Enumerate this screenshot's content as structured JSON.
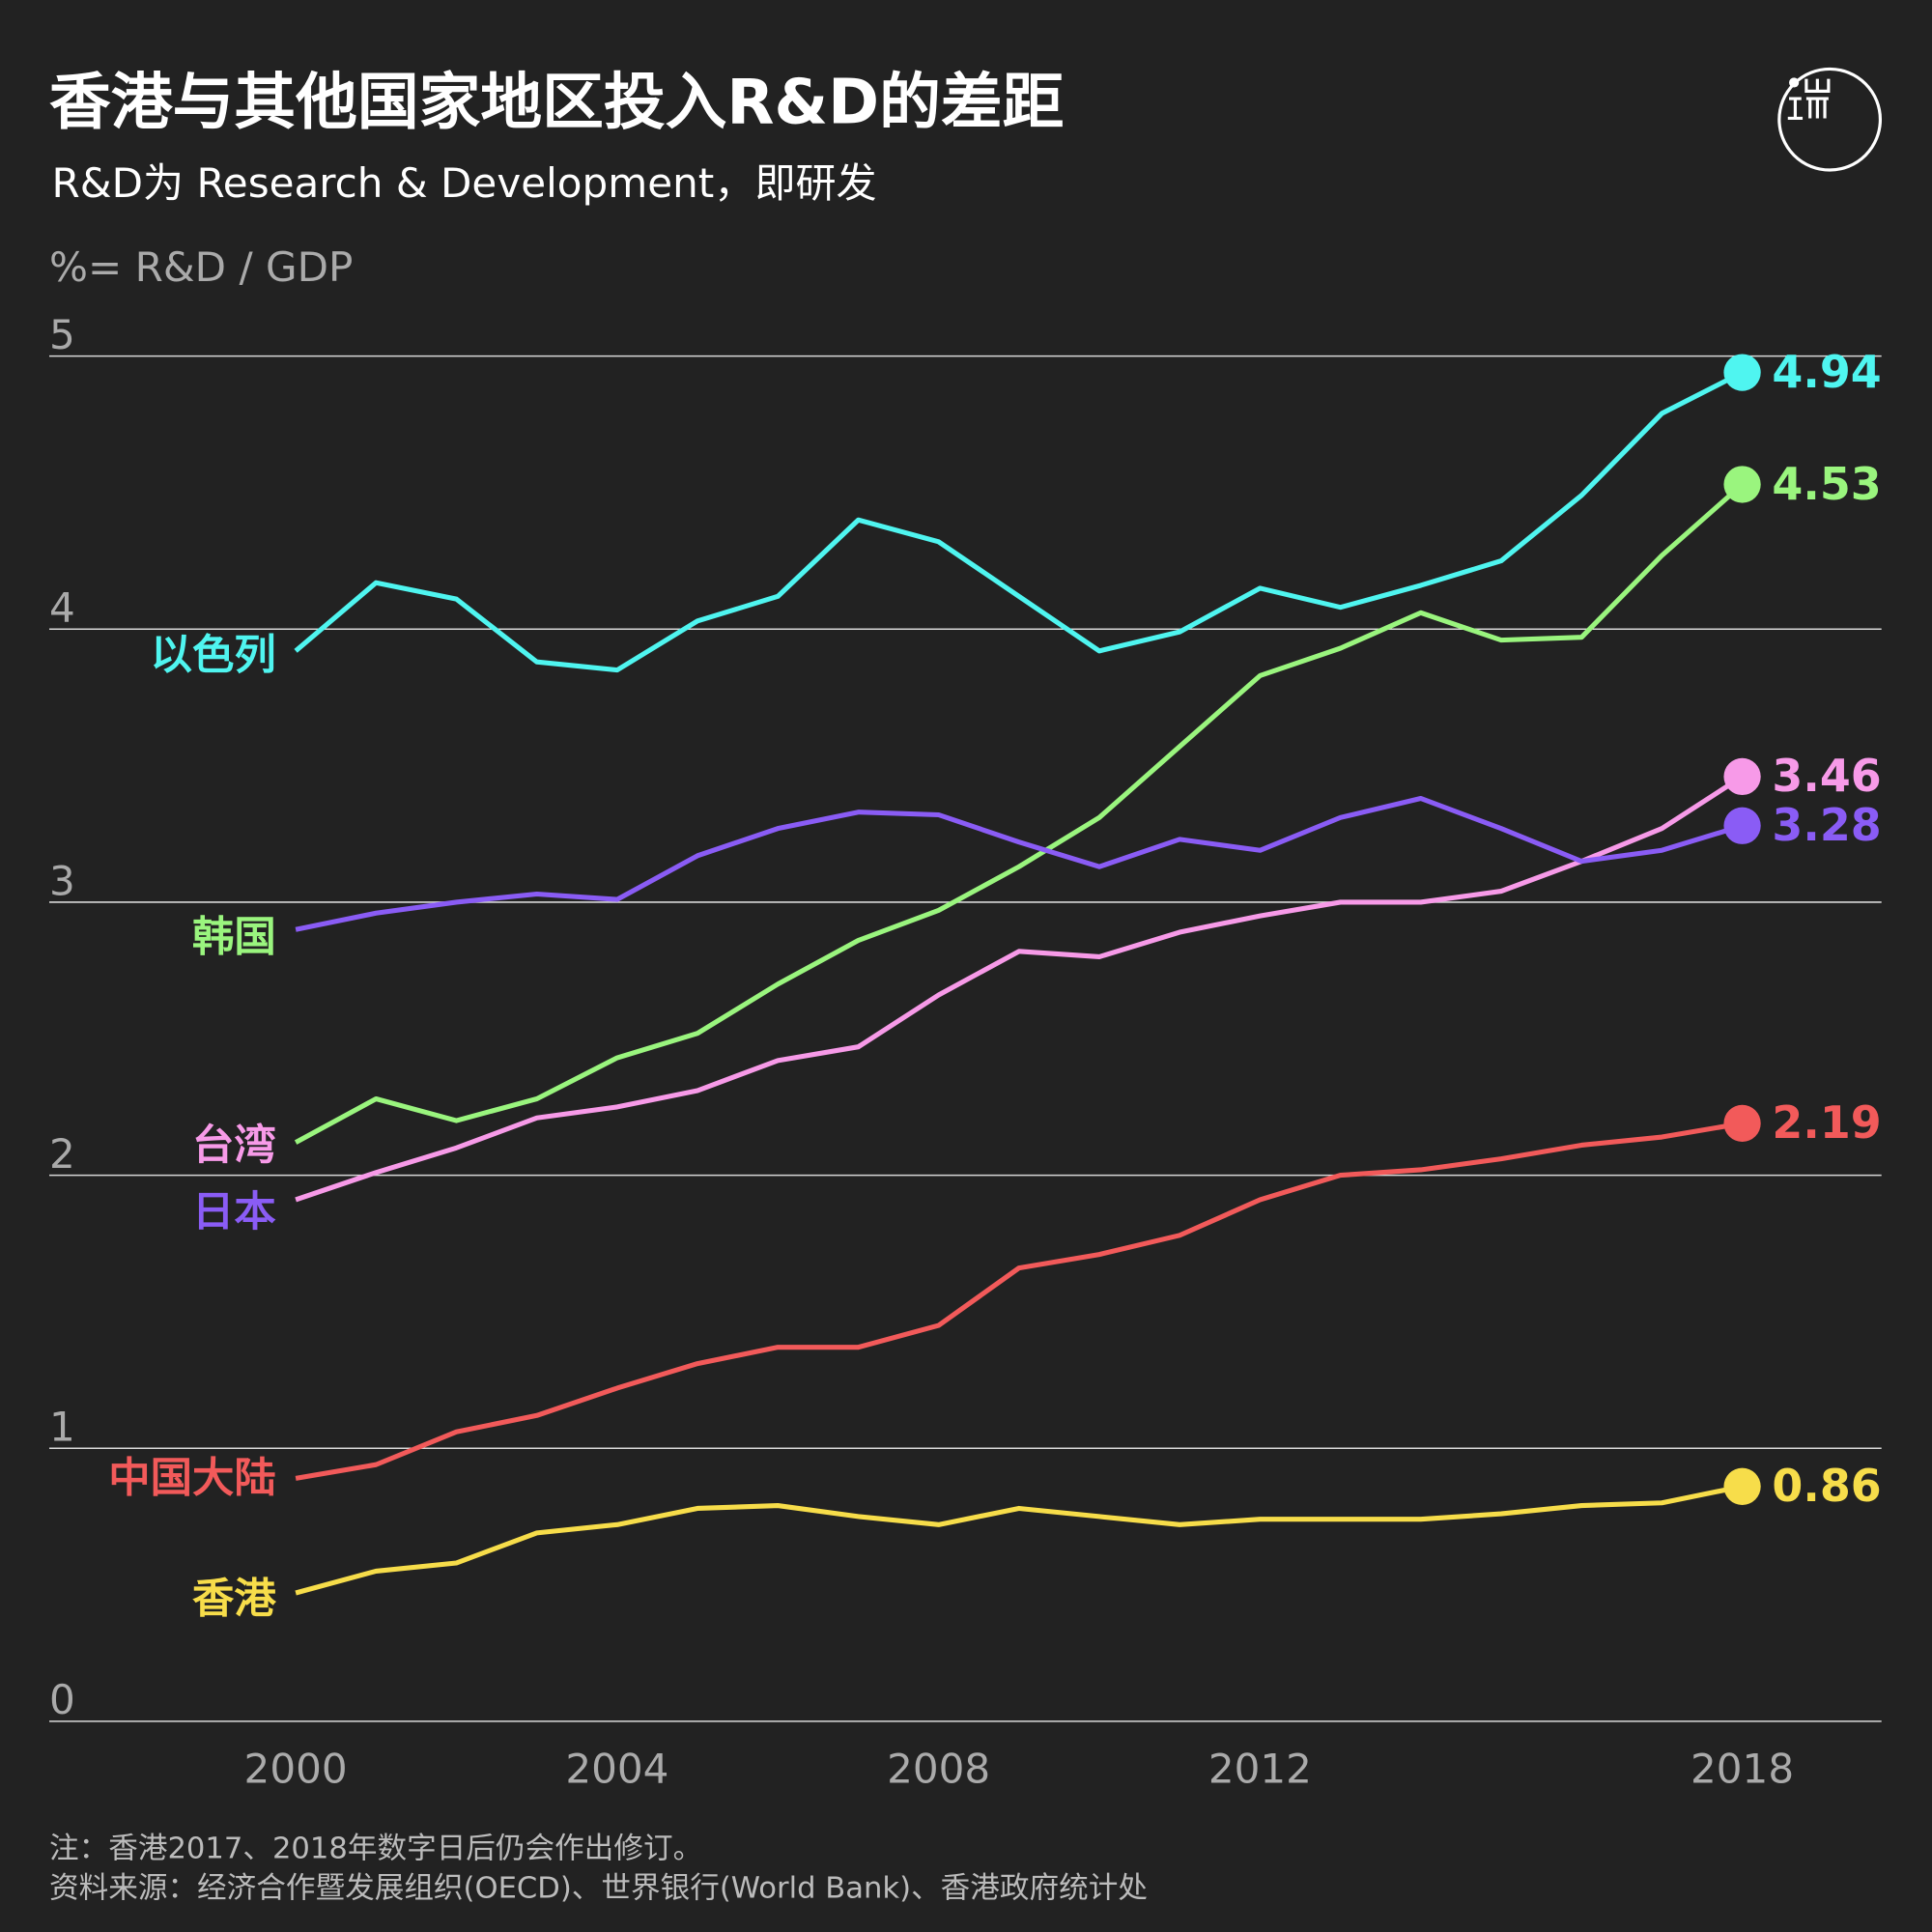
{
  "header": {
    "title": "香港与其他国家地区投入R&D的差距",
    "subtitle": "R&D为 Research & Development，即研发",
    "logo_text": "端"
  },
  "footer": {
    "note": "注：香港2017、2018年数字日后仍会作出修订。",
    "source": "资料来源：经济合作暨发展组织(OECD)、世界银行(World Bank)、香港政府统计处"
  },
  "chart_data": {
    "type": "line",
    "ylabel": "%= R&D / GDP",
    "ylim": [
      0,
      5
    ],
    "yticks": [
      "0",
      "1",
      "2",
      "3",
      "4",
      "5"
    ],
    "xticks": [
      "2000",
      "2004",
      "2008",
      "2012",
      "2018"
    ],
    "grid": true,
    "x": [
      2000,
      2001,
      2002,
      2003,
      2004,
      2005,
      2006,
      2007,
      2008,
      2009,
      2010,
      2011,
      2012,
      2013,
      2014,
      2015,
      2016,
      2017,
      2018
    ],
    "series": [
      {
        "name": "以色列",
        "color": "#4ff5f0",
        "end_label": "4.94",
        "values": [
          3.92,
          4.17,
          4.11,
          3.88,
          3.85,
          4.03,
          4.12,
          4.4,
          4.32,
          4.12,
          3.92,
          3.99,
          4.15,
          4.08,
          4.16,
          4.25,
          4.49,
          4.79,
          4.94
        ]
      },
      {
        "name": "韩国",
        "color": "#9af57e",
        "end_label": "4.53",
        "values": [
          2.12,
          2.28,
          2.2,
          2.28,
          2.43,
          2.52,
          2.7,
          2.86,
          2.97,
          3.13,
          3.31,
          3.57,
          3.83,
          3.93,
          4.06,
          3.96,
          3.97,
          4.27,
          4.53
        ]
      },
      {
        "name": "台湾",
        "color": "#f79ae8",
        "end_label": "3.46",
        "values": [
          1.91,
          2.01,
          2.1,
          2.21,
          2.25,
          2.31,
          2.42,
          2.47,
          2.66,
          2.82,
          2.8,
          2.89,
          2.95,
          3.0,
          3.0,
          3.04,
          3.15,
          3.27,
          3.46
        ]
      },
      {
        "name": "日本",
        "color": "#8a5cf5",
        "end_label": "3.28",
        "values": [
          2.9,
          2.96,
          3.0,
          3.03,
          3.01,
          3.17,
          3.27,
          3.33,
          3.32,
          3.22,
          3.13,
          3.23,
          3.19,
          3.31,
          3.38,
          3.27,
          3.15,
          3.19,
          3.28
        ]
      },
      {
        "name": "中国大陆",
        "color": "#f25a5a",
        "end_label": "2.19",
        "values": [
          0.89,
          0.94,
          1.06,
          1.12,
          1.22,
          1.31,
          1.37,
          1.37,
          1.45,
          1.66,
          1.71,
          1.78,
          1.91,
          2.0,
          2.02,
          2.06,
          2.11,
          2.14,
          2.19
        ]
      },
      {
        "name": "香港",
        "color": "#f7dd4a",
        "end_label": "0.86",
        "values": [
          0.47,
          0.55,
          0.58,
          0.69,
          0.72,
          0.78,
          0.79,
          0.75,
          0.72,
          0.78,
          0.75,
          0.72,
          0.74,
          0.74,
          0.74,
          0.76,
          0.79,
          0.8,
          0.86
        ]
      }
    ]
  }
}
